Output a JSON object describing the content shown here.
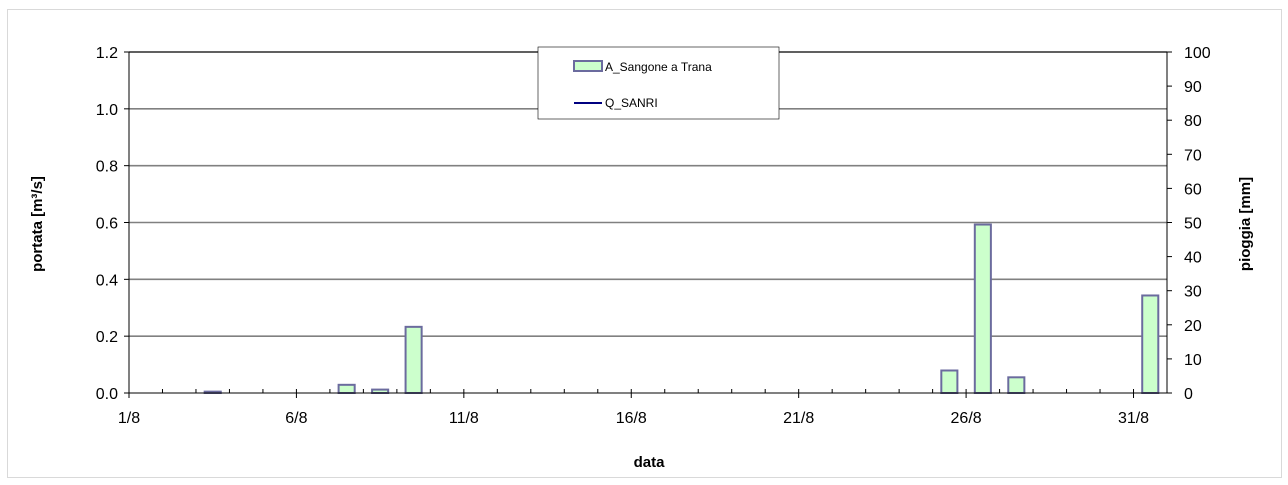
{
  "chart_data": {
    "type": "bar",
    "xlabel": "data",
    "ylabel_left": "portata [m³/s]",
    "ylabel_right": "pioggia [mm]",
    "x_tick_labels": [
      "1/8",
      "6/8",
      "11/8",
      "16/8",
      "21/8",
      "26/8",
      "31/8"
    ],
    "y_left_ticks": [
      "0.0",
      "0.2",
      "0.4",
      "0.6",
      "0.8",
      "1.0",
      "1.2"
    ],
    "y_right_ticks": [
      "0",
      "10",
      "20",
      "30",
      "40",
      "50",
      "60",
      "70",
      "80",
      "90",
      "100"
    ],
    "ylim_left": [
      0,
      1.2
    ],
    "ylim_right": [
      0,
      100
    ],
    "xlim": [
      1,
      32
    ],
    "grid": true,
    "legend_position": "top-center",
    "series": [
      {
        "name": "A_Sangone a Trana",
        "kind": "bar",
        "axis": "right",
        "color": "#ccffcc",
        "edge_color": "#6b6b9e",
        "x": [
          1,
          2,
          3,
          4,
          5,
          6,
          7,
          8,
          9,
          10,
          11,
          12,
          13,
          14,
          15,
          16,
          17,
          18,
          19,
          20,
          21,
          22,
          23,
          24,
          25,
          26,
          27,
          28,
          29,
          30,
          31
        ],
        "values": [
          0,
          0,
          0.4,
          0,
          0,
          0,
          2.4,
          1.0,
          19.4,
          0,
          0,
          0,
          0,
          0,
          0,
          0,
          0,
          0,
          0,
          0,
          0,
          0,
          0,
          0,
          6.6,
          49.4,
          4.6,
          0,
          0,
          0,
          28.6
        ]
      },
      {
        "name": "Q_SANRI",
        "kind": "line",
        "axis": "left",
        "color": "#000080",
        "x": [],
        "values": []
      }
    ]
  }
}
